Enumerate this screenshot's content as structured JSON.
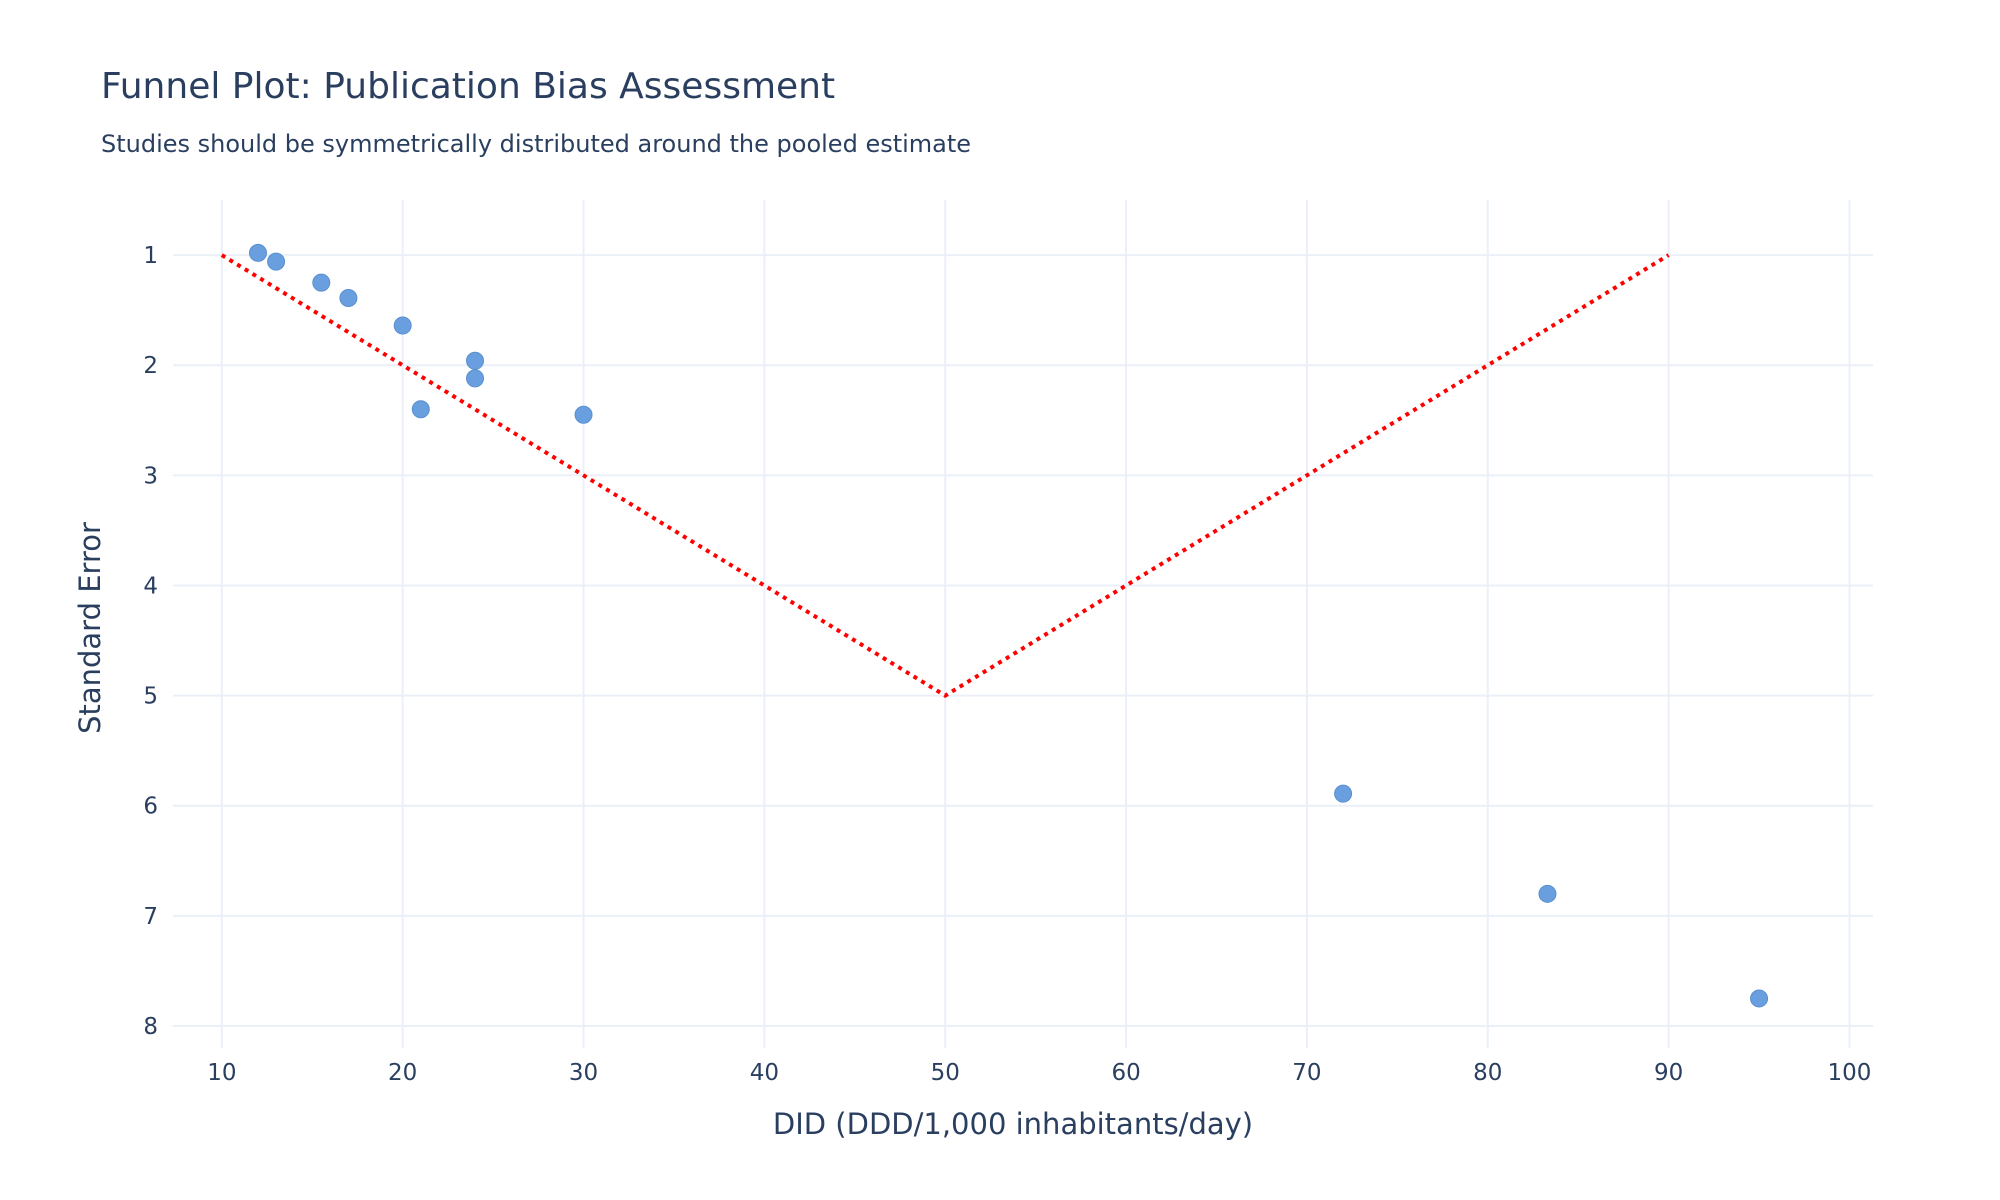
{
  "chart_data": {
    "type": "scatter",
    "title": "Funnel Plot: Publication Bias Assessment",
    "subtitle": "Studies should be symmetrically distributed around the pooled estimate",
    "xlabel": "DID (DDD/1,000 inhabitants/day)",
    "ylabel": "Standard Error",
    "xlim": [
      7.3,
      101.3
    ],
    "ylim": [
      8.2,
      0.5
    ],
    "y_reversed": true,
    "grid": true,
    "legend": "none",
    "x_ticks": [
      10,
      20,
      30,
      40,
      50,
      60,
      70,
      80,
      90,
      100
    ],
    "y_ticks": [
      1,
      2,
      3,
      4,
      5,
      6,
      7,
      8
    ],
    "series": [
      {
        "mode": "markers",
        "color": "#6a9fdf",
        "points": [
          {
            "x": 12.0,
            "y": 0.98
          },
          {
            "x": 13.0,
            "y": 1.06
          },
          {
            "x": 15.5,
            "y": 1.25
          },
          {
            "x": 17.0,
            "y": 1.39
          },
          {
            "x": 20.0,
            "y": 1.64
          },
          {
            "x": 24.0,
            "y": 1.96
          },
          {
            "x": 24.0,
            "y": 2.12
          },
          {
            "x": 21.0,
            "y": 2.4
          },
          {
            "x": 30.0,
            "y": 2.45
          },
          {
            "x": 72.0,
            "y": 5.89
          },
          {
            "x": 83.3,
            "y": 6.8
          },
          {
            "x": 95.0,
            "y": 7.75
          }
        ]
      },
      {
        "mode": "lines",
        "dash": "dot",
        "color": "#ff0000",
        "points": [
          {
            "x": 10,
            "y": 1
          },
          {
            "x": 50,
            "y": 5
          },
          {
            "x": 90,
            "y": 1
          }
        ]
      }
    ]
  }
}
